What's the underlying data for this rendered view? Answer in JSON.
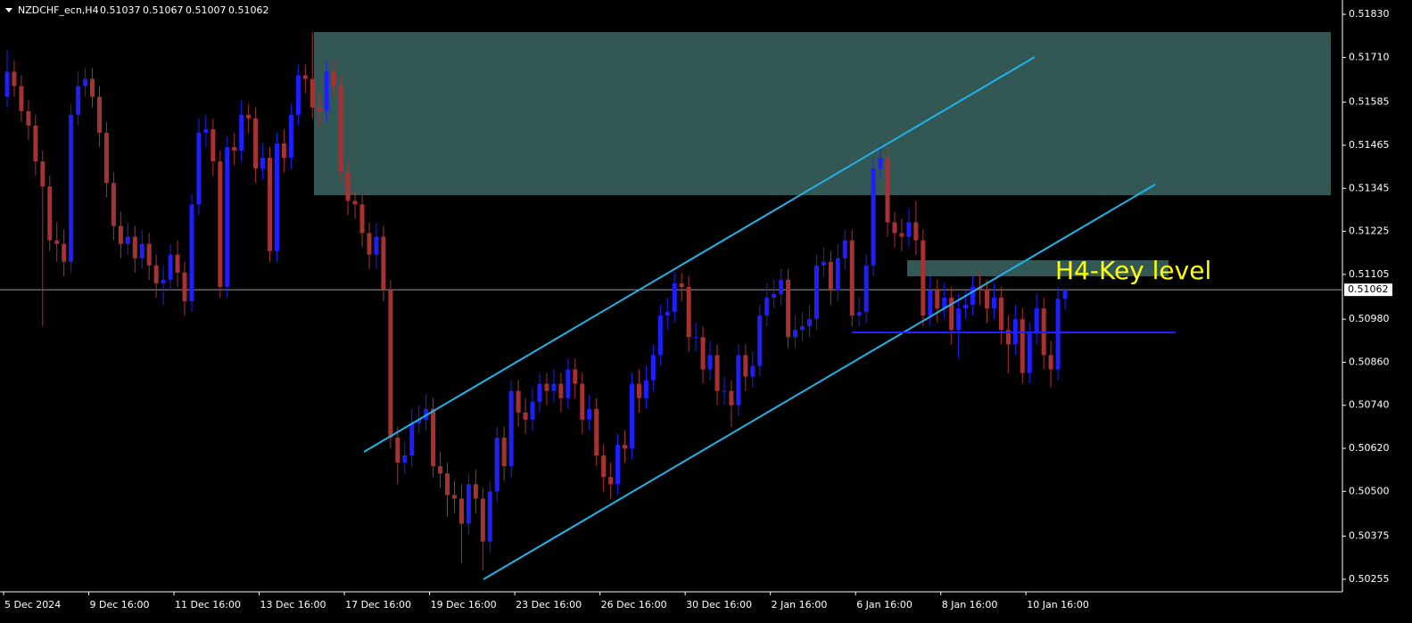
{
  "chart_data": {
    "type": "candlestick",
    "title": "NZDCHF_ecn,H4",
    "header_values": [
      0.51037,
      0.51067,
      0.51007,
      0.51062
    ],
    "annotation": "H4-Key level",
    "last_price": 0.51062,
    "up_color": "#1e1eff",
    "down_color": "#a83232",
    "ylim": [
      0.5022,
      0.5187
    ],
    "yticks": [
      {
        "value": 0.5183,
        "label": "0.51830"
      },
      {
        "value": 0.5171,
        "label": "0.51710"
      },
      {
        "value": 0.51585,
        "label": "0.51585"
      },
      {
        "value": 0.51465,
        "label": "0.51465"
      },
      {
        "value": 0.51345,
        "label": "0.51345"
      },
      {
        "value": 0.51225,
        "label": "0.51225"
      },
      {
        "value": 0.51105,
        "label": "0.51105"
      },
      {
        "value": 0.5098,
        "label": "0.50980"
      },
      {
        "value": 0.5086,
        "label": "0.50860"
      },
      {
        "value": 0.5074,
        "label": "0.50740"
      },
      {
        "value": 0.5062,
        "label": "0.50620"
      },
      {
        "value": 0.505,
        "label": "0.50500"
      },
      {
        "value": 0.50375,
        "label": "0.50375"
      },
      {
        "value": 0.50255,
        "label": "0.50255"
      }
    ],
    "categories": [
      "5 Dec 2024",
      null,
      null,
      null,
      null,
      null,
      null,
      null,
      null,
      null,
      null,
      null,
      "9 Dec 16:00",
      null,
      null,
      null,
      null,
      null,
      null,
      null,
      null,
      null,
      null,
      null,
      "11 Dec 16:00",
      null,
      null,
      null,
      null,
      null,
      null,
      null,
      null,
      null,
      null,
      null,
      "13 Dec 16:00",
      null,
      null,
      null,
      null,
      null,
      null,
      null,
      null,
      null,
      null,
      null,
      "17 Dec 16:00",
      null,
      null,
      null,
      null,
      null,
      null,
      null,
      null,
      null,
      null,
      null,
      "19 Dec 16:00",
      null,
      null,
      null,
      null,
      null,
      null,
      null,
      null,
      null,
      null,
      null,
      "23 Dec 16:00",
      null,
      null,
      null,
      null,
      null,
      null,
      null,
      null,
      null,
      null,
      null,
      "26 Dec 16:00",
      null,
      null,
      null,
      null,
      null,
      null,
      null,
      null,
      null,
      null,
      null,
      "30 Dec 16:00",
      null,
      null,
      null,
      null,
      null,
      null,
      null,
      null,
      null,
      null,
      null,
      "2 Jan 16:00",
      null,
      null,
      null,
      null,
      null,
      null,
      null,
      null,
      null,
      null,
      null,
      "6 Jan 16:00",
      null,
      null,
      null,
      null,
      null,
      null,
      null,
      null,
      null,
      null,
      null,
      "8 Jan 16:00",
      null,
      null,
      null,
      null,
      null,
      null,
      null,
      null,
      null,
      null,
      null,
      "10 Jan 16:00",
      null,
      null,
      null,
      null,
      null
    ],
    "open": [
      0.516,
      0.5167,
      0.5163,
      0.5156,
      0.5152,
      0.5142,
      0.5135,
      0.512,
      0.5119,
      0.5114,
      0.5155,
      0.5163,
      0.5165,
      0.516,
      0.515,
      0.5136,
      0.5124,
      0.5119,
      0.5121,
      0.5115,
      0.5119,
      0.5113,
      0.5108,
      0.5109,
      0.5116,
      0.5111,
      0.5103,
      0.513,
      0.515,
      0.5151,
      0.5142,
      0.5107,
      0.5146,
      0.5145,
      0.5155,
      0.5154,
      0.514,
      0.5143,
      0.5117,
      0.5147,
      0.5143,
      0.5155,
      0.5166,
      0.5165,
      0.5157,
      0.5156,
      0.5167,
      0.5163,
      0.5139,
      0.5131,
      0.513,
      0.5122,
      0.5116,
      0.5121,
      0.5106,
      0.5065,
      0.5058,
      0.506,
      0.5069,
      0.507,
      0.5073,
      0.5057,
      0.5055,
      0.5049,
      0.5048,
      0.5041,
      0.5052,
      0.5048,
      0.5036,
      0.505,
      0.5065,
      0.5057,
      0.5078,
      0.5072,
      0.507,
      0.5075,
      0.508,
      0.5078,
      0.508,
      0.5076,
      0.5084,
      0.508,
      0.507,
      0.5073,
      0.506,
      0.5054,
      0.5052,
      0.5063,
      0.5062,
      0.508,
      0.5076,
      0.5081,
      0.5088,
      0.5099,
      0.51,
      0.5108,
      0.5107,
      0.5093,
      0.5093,
      0.5084,
      0.5088,
      0.5078,
      0.5078,
      0.5074,
      0.5088,
      0.5082,
      0.5085,
      0.5099,
      0.5104,
      0.5105,
      0.5109,
      0.5093,
      0.5095,
      0.5096,
      0.5098,
      0.5113,
      0.5114,
      0.5106,
      0.5115,
      0.512,
      0.5099,
      0.51,
      0.5113,
      0.514,
      0.5143,
      0.5125,
      0.5122,
      0.5121,
      0.5125,
      0.512,
      0.5099,
      0.5106,
      0.5101,
      0.5104,
      0.5095,
      0.5101,
      0.5102,
      0.5107,
      0.5106,
      0.5101,
      0.5104,
      0.5095,
      0.5091,
      0.5098,
      0.5083,
      0.5094,
      0.5101,
      0.5088,
      0.5084,
      0.51037
    ],
    "high": [
      0.5173,
      0.517,
      0.5166,
      0.5159,
      0.5155,
      0.5145,
      0.5138,
      0.5125,
      0.5123,
      0.5158,
      0.5167,
      0.5168,
      0.5168,
      0.5163,
      0.5153,
      0.5139,
      0.5128,
      0.5125,
      0.5124,
      0.5123,
      0.5122,
      0.5116,
      0.5113,
      0.5119,
      0.512,
      0.5114,
      0.5133,
      0.5154,
      0.5155,
      0.5154,
      0.5145,
      0.5149,
      0.515,
      0.5159,
      0.5158,
      0.5157,
      0.5147,
      0.5146,
      0.515,
      0.5151,
      0.5158,
      0.5169,
      0.5169,
      0.5178,
      0.5161,
      0.517,
      0.517,
      0.5166,
      0.5142,
      0.5134,
      0.5133,
      0.5125,
      0.5125,
      0.5124,
      0.5109,
      0.5068,
      0.5064,
      0.5073,
      0.5074,
      0.5077,
      0.5076,
      0.5061,
      0.5058,
      0.5053,
      0.5052,
      0.5055,
      0.5056,
      0.5051,
      0.5053,
      0.5068,
      0.5068,
      0.5081,
      0.5081,
      0.5076,
      0.5079,
      0.5083,
      0.5083,
      0.5084,
      0.5083,
      0.5087,
      0.5087,
      0.5083,
      0.5077,
      0.5076,
      0.5063,
      0.5058,
      0.5066,
      0.5067,
      0.5083,
      0.5084,
      0.5085,
      0.5091,
      0.5102,
      0.5104,
      0.5111,
      0.5111,
      0.511,
      0.5097,
      0.5096,
      0.5092,
      0.5091,
      0.5082,
      0.5081,
      0.5091,
      0.5091,
      0.5089,
      0.5102,
      0.5108,
      0.5109,
      0.5112,
      0.5112,
      0.5099,
      0.51,
      0.5102,
      0.5116,
      0.5118,
      0.5117,
      0.5119,
      0.5123,
      0.5123,
      0.5104,
      0.5116,
      0.5143,
      0.5147,
      0.5146,
      0.5128,
      0.5126,
      0.5129,
      0.5131,
      0.5123,
      0.511,
      0.5109,
      0.5108,
      0.5107,
      0.5105,
      0.5106,
      0.511,
      0.5111,
      0.5109,
      0.5108,
      0.5107,
      0.5099,
      0.5102,
      0.5101,
      0.5097,
      0.5105,
      0.5104,
      0.5092,
      0.5107,
      0.51067
    ],
    "low": [
      0.5157,
      0.516,
      0.5153,
      0.5148,
      0.5138,
      0.5096,
      0.5117,
      0.5114,
      0.511,
      0.5111,
      0.5152,
      0.516,
      0.5157,
      0.5146,
      0.5132,
      0.512,
      0.5115,
      0.5116,
      0.5111,
      0.5112,
      0.5109,
      0.5104,
      0.5102,
      0.5106,
      0.5107,
      0.5099,
      0.51,
      0.5127,
      0.5146,
      0.5138,
      0.5104,
      0.5104,
      0.5141,
      0.5142,
      0.515,
      0.5136,
      0.5137,
      0.5114,
      0.5114,
      0.5139,
      0.514,
      0.5152,
      0.5161,
      0.5154,
      0.5152,
      0.5153,
      0.516,
      0.5136,
      0.5127,
      0.5126,
      0.5118,
      0.5112,
      0.5112,
      0.5103,
      0.5062,
      0.5052,
      0.5055,
      0.5057,
      0.5066,
      0.5067,
      0.5054,
      0.5051,
      0.5043,
      0.5044,
      0.503,
      0.5038,
      0.5044,
      0.5028,
      0.5033,
      0.5047,
      0.5053,
      0.5054,
      0.5068,
      0.5066,
      0.5067,
      0.5072,
      0.5074,
      0.5075,
      0.5072,
      0.5073,
      0.5076,
      0.5066,
      0.5067,
      0.5057,
      0.505,
      0.5048,
      0.5049,
      0.5058,
      0.5059,
      0.5072,
      0.5073,
      0.5078,
      0.5085,
      0.5095,
      0.5097,
      0.5103,
      0.5089,
      0.5089,
      0.508,
      0.5081,
      0.5074,
      0.5074,
      0.5068,
      0.5071,
      0.5078,
      0.5079,
      0.5082,
      0.5096,
      0.5101,
      0.5102,
      0.509,
      0.509,
      0.5092,
      0.5093,
      0.5095,
      0.511,
      0.5102,
      0.5103,
      0.5112,
      0.5096,
      0.5096,
      0.5097,
      0.511,
      0.5137,
      0.5121,
      0.5118,
      0.5117,
      0.5118,
      0.5116,
      0.5096,
      0.5096,
      0.5097,
      0.5098,
      0.5091,
      0.5087,
      0.5098,
      0.5099,
      0.5102,
      0.5097,
      0.5098,
      0.5091,
      0.5083,
      0.5088,
      0.508,
      0.508,
      0.5091,
      0.5084,
      0.5079,
      0.5081,
      0.51007
    ],
    "close": [
      0.5167,
      0.5163,
      0.5156,
      0.5152,
      0.5142,
      0.5135,
      0.512,
      0.5119,
      0.5114,
      0.5155,
      0.5163,
      0.5165,
      0.516,
      0.515,
      0.5136,
      0.5124,
      0.5119,
      0.5121,
      0.5115,
      0.5119,
      0.5113,
      0.5108,
      0.5109,
      0.5116,
      0.5111,
      0.5103,
      0.513,
      0.515,
      0.5151,
      0.5142,
      0.5107,
      0.5146,
      0.5145,
      0.5155,
      0.5154,
      0.514,
      0.5143,
      0.5117,
      0.5147,
      0.5143,
      0.5155,
      0.5166,
      0.5165,
      0.5157,
      0.5156,
      0.5167,
      0.5163,
      0.5139,
      0.5131,
      0.513,
      0.5122,
      0.5116,
      0.5121,
      0.5106,
      0.5065,
      0.5058,
      0.506,
      0.5069,
      0.507,
      0.5073,
      0.5057,
      0.5055,
      0.5049,
      0.5048,
      0.5041,
      0.5052,
      0.5048,
      0.5036,
      0.505,
      0.5065,
      0.5057,
      0.5078,
      0.5072,
      0.507,
      0.5075,
      0.508,
      0.5078,
      0.508,
      0.5076,
      0.5084,
      0.508,
      0.507,
      0.5073,
      0.506,
      0.5054,
      0.5052,
      0.5063,
      0.5062,
      0.508,
      0.5076,
      0.5081,
      0.5088,
      0.5099,
      0.51,
      0.5108,
      0.5107,
      0.5093,
      0.5093,
      0.5084,
      0.5088,
      0.5078,
      0.5078,
      0.5074,
      0.5088,
      0.5082,
      0.5085,
      0.5099,
      0.5104,
      0.5105,
      0.5109,
      0.5093,
      0.5095,
      0.5096,
      0.5098,
      0.5113,
      0.5114,
      0.5106,
      0.5115,
      0.512,
      0.5099,
      0.51,
      0.5113,
      0.514,
      0.5143,
      0.5125,
      0.5122,
      0.5121,
      0.5125,
      0.512,
      0.5099,
      0.5106,
      0.5101,
      0.5104,
      0.5095,
      0.5101,
      0.5102,
      0.5107,
      0.5106,
      0.5101,
      0.5104,
      0.5095,
      0.5091,
      0.5098,
      0.5083,
      0.5094,
      0.5101,
      0.5088,
      0.5084,
      0.51037,
      0.51062
    ]
  }
}
